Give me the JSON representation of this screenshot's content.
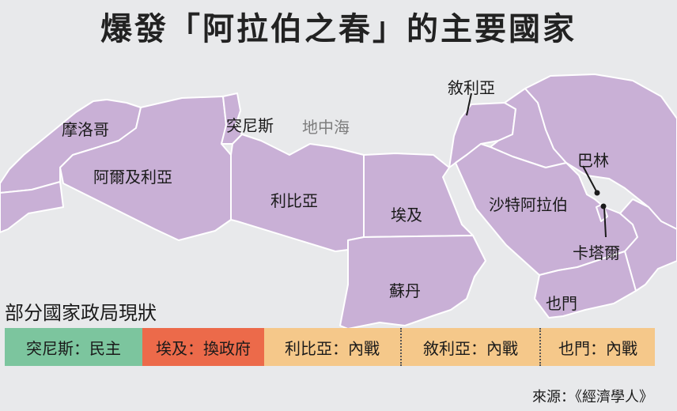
{
  "title": "爆發「阿拉伯之春」的主要國家",
  "map_labels": {
    "morocco": "摩洛哥",
    "algeria": "阿爾及利亞",
    "tunisia": "突尼斯",
    "libya": "利比亞",
    "egypt": "埃及",
    "sudan": "蘇丹",
    "syria": "敘利亞",
    "saudi": "沙特阿拉伯",
    "bahrain": "巴林",
    "qatar": "卡塔爾",
    "yemen": "也門",
    "sea": "地中海"
  },
  "legend": {
    "title": "部分國家政局現狀",
    "items": [
      {
        "label": "突尼斯：民主",
        "color": "#7cc59e"
      },
      {
        "label": "埃及：換政府",
        "color": "#ec6a4a"
      },
      {
        "label": "利比亞：內戰",
        "color": "#f5c88a"
      },
      {
        "label": "敘利亞：內戰",
        "color": "#f5c88a"
      },
      {
        "label": "也門：內戰",
        "color": "#f5c88a"
      }
    ]
  },
  "source": "來源：《經濟學人》",
  "colors": {
    "land": "#c9b0d6",
    "border": "#ffffff",
    "background": "#e8e9eb"
  }
}
